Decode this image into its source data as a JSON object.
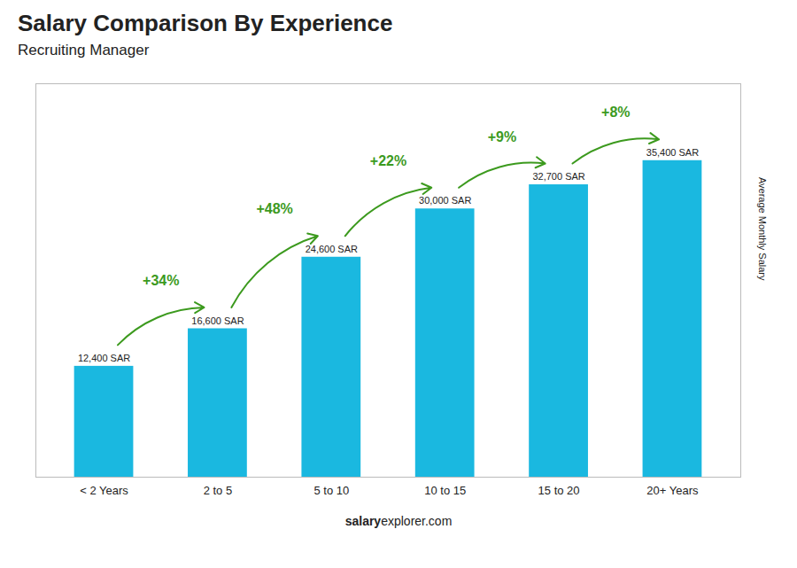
{
  "chart_data": {
    "type": "bar",
    "title": "Salary Comparison By Experience",
    "subtitle": "Recruiting Manager",
    "ylabel": "Average Monthly Salary",
    "caption": [
      "salary",
      "explorer.com"
    ],
    "categories": [
      "< 2 Years",
      "2 to 5",
      "5 to 10",
      "10 to 15",
      "15 to 20",
      "20+ Years"
    ],
    "values": [
      12400,
      16600,
      24600,
      30000,
      32700,
      35400
    ],
    "value_labels": [
      "12,400 SAR",
      "16,600 SAR",
      "24,600 SAR",
      "30,000 SAR",
      "32,700 SAR",
      "35,400 SAR"
    ],
    "data_labels": true,
    "annotations": [
      "+34%",
      "+48%",
      "+22%",
      "+9%",
      "+8%"
    ],
    "color": "#1ab8e0",
    "ylim": [
      0,
      44000
    ],
    "tick_labels": "x",
    "grid": false
  }
}
